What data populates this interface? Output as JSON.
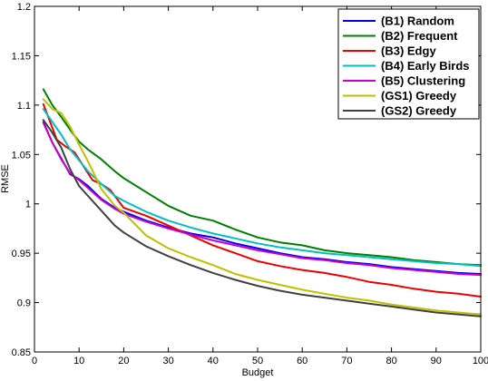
{
  "chart_data": {
    "type": "line",
    "title": "",
    "xlabel": "Budget",
    "ylabel": "RMSE",
    "xlim": [
      0,
      100
    ],
    "ylim": [
      0.85,
      1.2
    ],
    "xticks": [
      0,
      10,
      20,
      30,
      40,
      50,
      60,
      70,
      80,
      90,
      100
    ],
    "yticks": [
      0.85,
      0.9,
      0.95,
      1,
      1.05,
      1.1,
      1.15,
      1.2
    ],
    "ytick_labels": [
      "0.85",
      "0.9",
      "0.95",
      "1",
      "1.05",
      "1.1",
      "1.15",
      "1.2"
    ],
    "grid": false,
    "legend_position": "top-right",
    "series": [
      {
        "name": "(B1) Random",
        "color": "#0000ee",
        "x": [
          2,
          4,
          6,
          8,
          10,
          12,
          15,
          18,
          20,
          25,
          30,
          35,
          40,
          45,
          50,
          55,
          60,
          65,
          70,
          75,
          80,
          85,
          90,
          95,
          100
        ],
        "y": [
          1.083,
          1.062,
          1.046,
          1.03,
          1.025,
          1.018,
          1.005,
          0.996,
          0.992,
          0.983,
          0.976,
          0.97,
          0.966,
          0.96,
          0.955,
          0.95,
          0.946,
          0.944,
          0.941,
          0.939,
          0.936,
          0.934,
          0.932,
          0.93,
          0.929
        ]
      },
      {
        "name": "(B2) Frequent",
        "color": "#008000",
        "x": [
          2,
          4,
          6,
          8,
          10,
          12,
          15,
          18,
          20,
          25,
          30,
          35,
          40,
          45,
          50,
          55,
          60,
          65,
          70,
          75,
          80,
          85,
          90,
          95,
          100
        ],
        "y": [
          1.116,
          1.1,
          1.088,
          1.075,
          1.063,
          1.055,
          1.045,
          1.033,
          1.026,
          1.012,
          0.998,
          0.988,
          0.983,
          0.974,
          0.966,
          0.961,
          0.958,
          0.953,
          0.95,
          0.948,
          0.946,
          0.943,
          0.941,
          0.939,
          0.938
        ]
      },
      {
        "name": "(B3) Edgy",
        "color": "#ee0000",
        "x": [
          2,
          4,
          5,
          7,
          9,
          11,
          13,
          15,
          17,
          20,
          25,
          30,
          35,
          40,
          45,
          50,
          55,
          60,
          65,
          70,
          75,
          80,
          85,
          90,
          95,
          100
        ],
        "y": [
          1.101,
          1.077,
          1.065,
          1.058,
          1.052,
          1.038,
          1.024,
          1.02,
          1.014,
          0.996,
          0.988,
          0.978,
          0.968,
          0.958,
          0.95,
          0.942,
          0.937,
          0.933,
          0.93,
          0.926,
          0.921,
          0.918,
          0.914,
          0.911,
          0.909,
          0.906
        ]
      },
      {
        "name": "(B4) Early Birds",
        "color": "#00c0c0",
        "x": [
          2,
          4,
          6,
          8,
          10,
          12,
          15,
          18,
          20,
          25,
          30,
          35,
          40,
          45,
          50,
          55,
          60,
          65,
          70,
          75,
          80,
          85,
          90,
          95,
          100
        ],
        "y": [
          1.096,
          1.083,
          1.07,
          1.055,
          1.044,
          1.033,
          1.02,
          1.008,
          1.003,
          0.992,
          0.983,
          0.976,
          0.97,
          0.965,
          0.96,
          0.956,
          0.953,
          0.95,
          0.948,
          0.946,
          0.944,
          0.942,
          0.94,
          0.939,
          0.937
        ]
      },
      {
        "name": "(B5) Clustering",
        "color": "#cc00cc",
        "x": [
          2,
          4,
          6,
          8,
          10,
          12,
          15,
          18,
          20,
          25,
          30,
          35,
          40,
          45,
          50,
          55,
          60,
          65,
          70,
          75,
          80,
          85,
          90,
          95,
          100
        ],
        "y": [
          1.082,
          1.062,
          1.045,
          1.031,
          1.024,
          1.016,
          1.004,
          0.995,
          0.99,
          0.982,
          0.975,
          0.969,
          0.963,
          0.958,
          0.953,
          0.949,
          0.945,
          0.943,
          0.94,
          0.938,
          0.935,
          0.933,
          0.931,
          0.929,
          0.928
        ]
      },
      {
        "name": "(GS1) Greedy",
        "color": "#c0c000",
        "x": [
          2,
          4,
          6,
          8,
          10,
          12,
          15,
          18,
          20,
          25,
          30,
          35,
          40,
          45,
          50,
          55,
          60,
          65,
          70,
          75,
          80,
          85,
          90,
          95,
          100
        ],
        "y": [
          1.106,
          1.096,
          1.092,
          1.078,
          1.06,
          1.043,
          1.015,
          0.998,
          0.991,
          0.968,
          0.955,
          0.946,
          0.938,
          0.929,
          0.923,
          0.918,
          0.913,
          0.909,
          0.905,
          0.902,
          0.898,
          0.895,
          0.892,
          0.89,
          0.888
        ]
      },
      {
        "name": "(GS2) Greedy",
        "color": "#404040",
        "x": [
          2,
          4,
          6,
          8,
          10,
          12,
          15,
          18,
          20,
          25,
          30,
          35,
          40,
          45,
          50,
          55,
          60,
          65,
          70,
          75,
          80,
          85,
          90,
          95,
          100
        ],
        "y": [
          1.085,
          1.072,
          1.057,
          1.035,
          1.018,
          1.008,
          0.993,
          0.978,
          0.971,
          0.957,
          0.947,
          0.938,
          0.93,
          0.923,
          0.917,
          0.912,
          0.908,
          0.905,
          0.902,
          0.899,
          0.896,
          0.893,
          0.89,
          0.888,
          0.886
        ]
      }
    ]
  }
}
